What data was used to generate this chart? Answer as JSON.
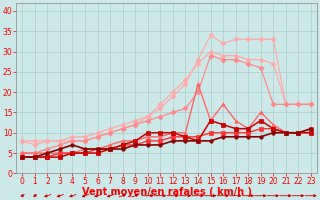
{
  "background_color": "#cde8e8",
  "grid_color": "#aacccc",
  "xlabel": "Vent moyen/en rafales ( km/h )",
  "x_ticks": [
    0,
    1,
    2,
    3,
    4,
    5,
    6,
    7,
    8,
    9,
    10,
    11,
    12,
    13,
    14,
    15,
    16,
    17,
    18,
    19,
    20,
    21,
    22,
    23
  ],
  "ylim": [
    0,
    42
  ],
  "yticks": [
    0,
    5,
    10,
    15,
    20,
    25,
    30,
    35,
    40
  ],
  "lines": [
    {
      "color": "#ffaaaa",
      "marker": "D",
      "markersize": 2.5,
      "linewidth": 0.9,
      "data": [
        8,
        8,
        8,
        8,
        9,
        9,
        10,
        11,
        12,
        13,
        14,
        16,
        19,
        22,
        28,
        34,
        32,
        33,
        33,
        33,
        33,
        17,
        17,
        17
      ]
    },
    {
      "color": "#ffaaaa",
      "marker": "D",
      "markersize": 2.5,
      "linewidth": 0.9,
      "data": [
        8,
        7,
        8,
        8,
        8,
        8,
        9,
        10,
        11,
        12,
        14,
        17,
        20,
        23,
        27,
        30,
        29,
        29,
        28,
        28,
        27,
        17,
        17,
        17
      ]
    },
    {
      "color": "#ff8888",
      "marker": "D",
      "markersize": 2.5,
      "linewidth": 0.9,
      "data": [
        5,
        5,
        6,
        7,
        8,
        8,
        9,
        10,
        11,
        12,
        13,
        14,
        15,
        16,
        20,
        29,
        28,
        28,
        27,
        26,
        17,
        17,
        17,
        17
      ]
    },
    {
      "color": "#ff6666",
      "marker": "^",
      "markersize": 2.5,
      "linewidth": 1.0,
      "data": [
        5,
        5,
        5,
        5,
        5,
        6,
        6,
        7,
        8,
        8,
        9,
        9,
        10,
        10,
        22,
        13,
        17,
        13,
        11,
        15,
        12,
        10,
        10,
        10
      ]
    },
    {
      "color": "#ff3333",
      "marker": "s",
      "markersize": 2.5,
      "linewidth": 1.0,
      "data": [
        4,
        4,
        4,
        5,
        5,
        5,
        6,
        6,
        7,
        7,
        8,
        8,
        9,
        9,
        9,
        10,
        10,
        10,
        10,
        11,
        11,
        10,
        10,
        11
      ]
    },
    {
      "color": "#cc0000",
      "marker": "s",
      "markersize": 2.5,
      "linewidth": 1.1,
      "data": [
        4,
        4,
        4,
        4,
        5,
        5,
        5,
        6,
        7,
        8,
        10,
        10,
        10,
        9,
        8,
        13,
        12,
        11,
        11,
        13,
        11,
        10,
        10,
        10
      ]
    },
    {
      "color": "#880000",
      "marker": "o",
      "markersize": 2.5,
      "linewidth": 1.2,
      "data": [
        4,
        4,
        5,
        6,
        7,
        6,
        6,
        6,
        6,
        7,
        7,
        7,
        8,
        8,
        8,
        8,
        9,
        9,
        9,
        9,
        10,
        10,
        10,
        11
      ]
    }
  ],
  "wind_arrows_angles": [
    210,
    210,
    225,
    225,
    225,
    225,
    225,
    225,
    45,
    45,
    90,
    90,
    90,
    90,
    90,
    90,
    90,
    90,
    90,
    90,
    90,
    90,
    90,
    90
  ],
  "xlabel_fontsize": 7,
  "tick_fontsize": 5.5
}
